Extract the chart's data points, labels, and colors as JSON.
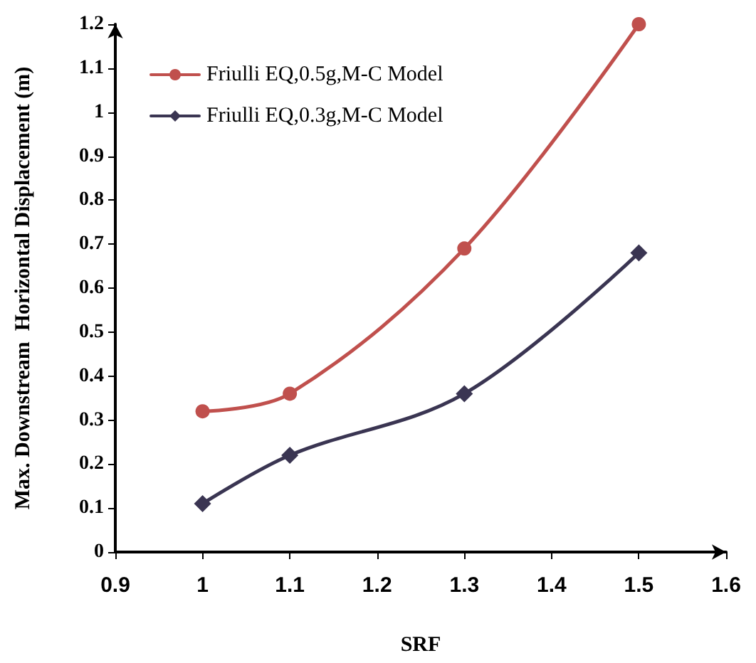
{
  "chart_data": {
    "type": "line",
    "xlabel": "SRF",
    "ylabel": "Max. Downstream  Horizontal Displacement (m)",
    "x": [
      1,
      1.1,
      1.3,
      1.5
    ],
    "series": [
      {
        "name": "Friulli EQ,0.5g,M-C Model",
        "color": "#c0504d",
        "marker": "circle",
        "values": [
          0.32,
          0.36,
          0.69,
          1.2
        ]
      },
      {
        "name": "Friulli EQ,0.3g,M-C Model",
        "color": "#3a3552",
        "marker": "diamond",
        "values": [
          0.11,
          0.22,
          0.36,
          0.68
        ]
      }
    ],
    "xlim": [
      0.9,
      1.6
    ],
    "xticks": [
      0.9,
      1,
      1.1,
      1.2,
      1.3,
      1.4,
      1.5,
      1.6
    ],
    "ylim": [
      0,
      1.2
    ],
    "yticks": [
      0,
      0.1,
      0.2,
      0.3,
      0.4,
      0.5,
      0.6,
      0.7,
      0.8,
      0.9,
      1,
      1.1,
      1.2
    ],
    "grid": false,
    "legend": "top left",
    "line_style": "solid"
  }
}
